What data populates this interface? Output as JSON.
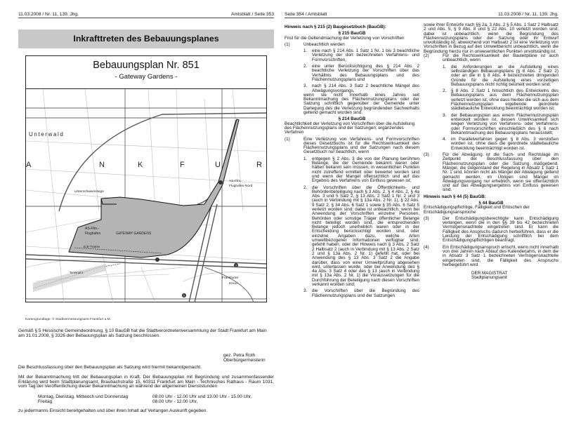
{
  "left_page": {
    "header_left": "11.03.2008 / Nr. 11, 139. Jhg.",
    "header_right": "Amtsblatt / Seite 353",
    "title": "Inkrafttreten des Bebauungsplanes",
    "plan_title": "Bebauungsplan Nr. 851",
    "plan_subtitle": "- Gateway Gardens -",
    "map_labels": {
      "unterwald": "Unterwald",
      "frankfurt_letters": [
        "R",
        "A",
        "N",
        "K",
        "F",
        "U",
        "R"
      ],
      "unterschweinstiege": "Unterschweinstiege",
      "as_nord_1": "AS-Ffm.-",
      "as_nord_2": "Flughafen-Nord",
      "as_1": "AS-Ffm.-",
      "as_2": "Flughafen",
      "gateway": "GATEWAY GARDENS",
      "ice": "ICE-Trasse",
      "terminal": "Terminal 2",
      "kreuz_1": "Frankfurter",
      "kreuz_2": "Kreuz",
      "autobahn_a5": "5",
      "autobahn_a3": "3"
    },
    "map_caption": "Kartengrundlage: © Stadtvermessungsamt Frankfurt a.M.",
    "para1": "Gemäß § 5 Hessische Gemeindeordnung, § 10 BauGB hat die Stadtverordnetenversammlung der Stadt Frankfurt am Main am 31.01.2008, § 3326 den Bebauungsplan als Satzung beschlossen.",
    "signature_1": "gez. Petra Roth",
    "signature_2": "Oberbürgermeisterin",
    "para2": "Die Beschlussfassung über den Bebauungsplan als Satzung wird hiermit bekanntgemacht.",
    "para3": "Mit der Bekanntmachung tritt der Bebauungsplan in Kraft. Der Bebauungsplan mit Begründung und zusammenfassender Erklärung wird beim Stadtplanungsamt, Braubachstraße 15, 60311 Frankfurt am Main - Technisches Rathaus - Raum 1031, vom Tag der Veröffentlichung dieser Bekanntmachung an während der allgemeinen Dienststunden",
    "hours": [
      {
        "days": "Montag, Dienstag, Mittwoch und Donnerstag",
        "time": "08.00 Uhr - 12.00 Uhr und 13.00 Uhr - 15.00 Uhr,"
      },
      {
        "days": "Freitag",
        "time": "08.00 Uhr - 12.00 Uhr,"
      }
    ],
    "para4": "zu jedermanns Einsicht bereitgehalten und über ihren Inhalt auf Verlangen Auskunft gegeben."
  },
  "right_page": {
    "header_left": "Seite 354 / Amtsblatt",
    "header_right": "11.03.2008 / Nr. 11, 139. Jhg.",
    "col1": [
      {
        "type": "heading",
        "text": "Hinweis nach § 215 (2) Baugesetzbuch (BauGB):"
      },
      {
        "type": "sec",
        "text": "§ 215 BauGB"
      },
      {
        "type": "sub",
        "text": "Frist für die Geltendmachung der Verletzung von Vorschriften"
      },
      {
        "type": "para",
        "num": "(1)",
        "text": "Unbeachtlich werden",
        "items": [
          {
            "num": "1.",
            "text": "eine nach § 214 Abs. 1 Satz 1 Nr. 1 bis 3 beachtliche Verletzung der dort bezeichneten Verfahrens- und Formvorschriften,"
          },
          {
            "num": "2.",
            "text": "eine unter Berücksichtigung des § 214 Abs. 2 beachtliche Verletzung der Vorschriften über das Verhältnis des Bebauungsplans und des Flächennutzungsplans und"
          },
          {
            "num": "3.",
            "text": "nach § 214 Abs. 3 Satz 2 beachtliche Mängel des Abwägungsvorgangs,"
          }
        ],
        "after": "wenn sie nicht innerhalb eines Jahres seit Bekanntmachung des Flächennutzungsplans oder der Satzung schriftlich gegenüber der Gemeinde unter Darlegung des die Verletzung begründenden Sachverhalts geltend gemacht worden sind."
      },
      {
        "type": "sec",
        "text": "§ 214 BauGB"
      },
      {
        "type": "sub",
        "text": "Beachtlichkeit der Verletzung von Vorschriften über die Aufstellung des Flächennutzungsplans und der Satzungen; ergänzendes Verfahren"
      },
      {
        "type": "para",
        "num": "(1)",
        "text": "Eine Verletzung von Verfahrens- und Formvorschriften dieses Gesetzbuchs ist für die Rechtswirksamkeit des Flächennutzungsplans und der Satzungen nach diesem Gesetzbuch nur beachtlich, wenn",
        "items": [
          {
            "num": "1.",
            "text": "entgegen § 2 Abs. 3 die von der Planung berührten Belange, die der Gemeinde bekannt waren oder hätten bekannt sein müssen, in wesentlichen Punkten nicht zutreffend ermittelt oder bewertet worden sind und wenn der Mangel offensichtlich und auf das Ergebnis des Verfahrens von Einfluss gewesen ist;"
          },
          {
            "num": "2.",
            "text": "die Vorschriften über die Öffentlichkeits- und Behördenbeteiligung nach § 3 Abs. 2, § 4 Abs. 2, § 4a Abs. 3 und 5 Satz 2, § 13 Abs. 2 Satz 1 Nr. 2 und 3 (auch in Verbindung mit § 13a Abs. 2 Nr. 1), § 22 Abs. 9 Satz 2, § 34 Abs. 6 Satz 1 sowie § 35 Abs. 6 Satz 5 verletzt worden sind; dabei ist unbeachtlich, wenn bei Anwendung der Vorschriften einzelne Personen, Behörden oder sonstige Träger öffentlicher Belange nicht beteiligt worden sind, die entsprechenden Belange jedoch unerheblich waren oder in der Entscheidung berücksichtigt worden sind, oder einzelne Angaben dazu, welche Arten umweltbezogener Informationen verfügbar sind, gefehlt haben, oder der Hinweis nach § 3 Abs. 2 Satz 2 Halbsatz 2 (auch in Verbindung mit § 13 Abs. 2 Satz 2 und § 13a Abs. 2 Nr. 1) gefehlt hat, oder bei Anwendung des § 13 Abs. 3 Satz 2 die Angabe darüber, dass von einer Umweltprüfung abgesehen wird, unterlassen wurde, oder bei Anwendung des § 4a Abs. 3 Satz 4 oder des § 13 (auch in Verbindung mit § 13a Abs. 2 Nr. 1) die Voraussetzungen für die Durchführung der Beteiligung nach diesen Vorschriften verkannt worden sind;"
          },
          {
            "num": "3.",
            "text": "die Vorschriften über die Begründung des Flächennutzungsplans und der Satzungen"
          }
        ]
      }
    ],
    "col2": [
      {
        "type": "cont",
        "text": "sowie ihrer Entwürfe nach §§ 2a, 3 Abs. 2 § 5 Abs. 1 Satz 2 Halbsatz 2 und Abs. 5, § 9 Abs. 8 und § 22 Abs. 10 verletzt worden sind; dabei ist unbeachtlich, wenn die Begründung des Flächennutzungsplans oder der Satzung oder ihr Entwurf unvollständig ist; abweichend von Halbsatz 2 ist eine Verletzung von Vorschriften in Bezug auf den Umweltbericht unbeachtlich, wenn die Begründung hierzu nur in unwesentlichen Punkten unvollständig ist."
      },
      {
        "type": "para",
        "num": "(2)",
        "text": "Für die Rechtswirksamkeit der Bauleitpläne ist auch unbeachtlich, wenn",
        "items": [
          {
            "num": "1.",
            "text": "die Anforderungen an die Aufstellung eines selbständigen Bebauungsplans (§ 8 Abs. 2 Satz 2) oder an die in § 8 Abs. 4 bezeichneten dringenden Gründe für die Aufstellung eines vorzeitigen Bebauungsplans nicht richtig beurteilt worden sind;"
          },
          {
            "num": "2.",
            "text": "§ 8 Abs. 2 Satz 1 hinsichtlich des Entwickelns des Bebauungsplans aus dem Flächennutzungsplan verletzt worden ist, ohne dass hierbei die sich aus dem Flächennutzungsplan ergebende geordnete städtebauliche Entwicklung beeinträchtigt worden ist;"
          },
          {
            "num": "3.",
            "text": "der Bebauungsplan aus einem Flächennutzungsplan entwickelt worden ist, dessen Unwirksamkeit sich wegen Verletzung von Verfahrens- oder Verfahrens- oder Formvorschriften einschließlich des § 6 nach Bekanntmachung des Bebauungsplans herausstellt;"
          },
          {
            "num": "4.",
            "text": "im Parallelverfahren gegen § 8 Abs. 3 verstoßen worden ist, ohne dass die geordnete städtebauliche Entwicklung beeinträchtigt worden ist."
          }
        ]
      },
      {
        "type": "para",
        "num": "(3)",
        "text": "Für die Abwägung ist die Sach- und Rechtslage im Zeitpunkt der Beschlussfassung über den Flächennutzungsplan oder die Satzung maßgebend. Mängel, die Gegenstand der Regelung in Absatz 1 Satz 1 Nr. 1 sind, können nicht als Mängel der Abwägung geltend gemacht werden; im Übrigen sind Mängel im Abwägungsvorgang nur erheblich, wenn sie offensichtlich und auf das Abwägungsergebnis von Einfluss gewesen sind."
      },
      {
        "type": "heading",
        "text": "Hinweis nach § 44 (5) BauGB:"
      },
      {
        "type": "sec",
        "text": "§ 44 BauGB"
      },
      {
        "type": "sub",
        "text": "Entschädigungspflichtige, Fälligkeit und Erlöschen der Entschädigungsansprüche"
      },
      {
        "type": "para",
        "num": "(3)",
        "text": "Der Entschädigungsberechtigte kann Entschädigung verlangen, wenn die in den §§ 39 bis 42 bezeichneten Vermögensnachteile eingetreten sind. Er kann die Fälligkeit des Anspruchs dadurch herbeiführen, dass er die Leistung der Entschädigung schriftlich bei dem Entschädigungspflichtigen beantragt."
      },
      {
        "type": "para",
        "num": "(4)",
        "text": "Ein Entschädigungsanspruch erlischt, wenn nicht innerhalb von drei Jahren nach Ablauf des Kalenderjahrs, in dem die in Absatz 3 Satz 1 bezeichneten Vermögensnachteile eingetreten sind, die Fälligkeit des Anspruchs herbeigeführt wird."
      },
      {
        "type": "sign",
        "lines": [
          "DER MAGISTRAT",
          "Stadtplanungsamt"
        ]
      }
    ]
  },
  "colors": {
    "title_bar": "#c8c8c8",
    "plan_area": "#b4b4b4"
  }
}
